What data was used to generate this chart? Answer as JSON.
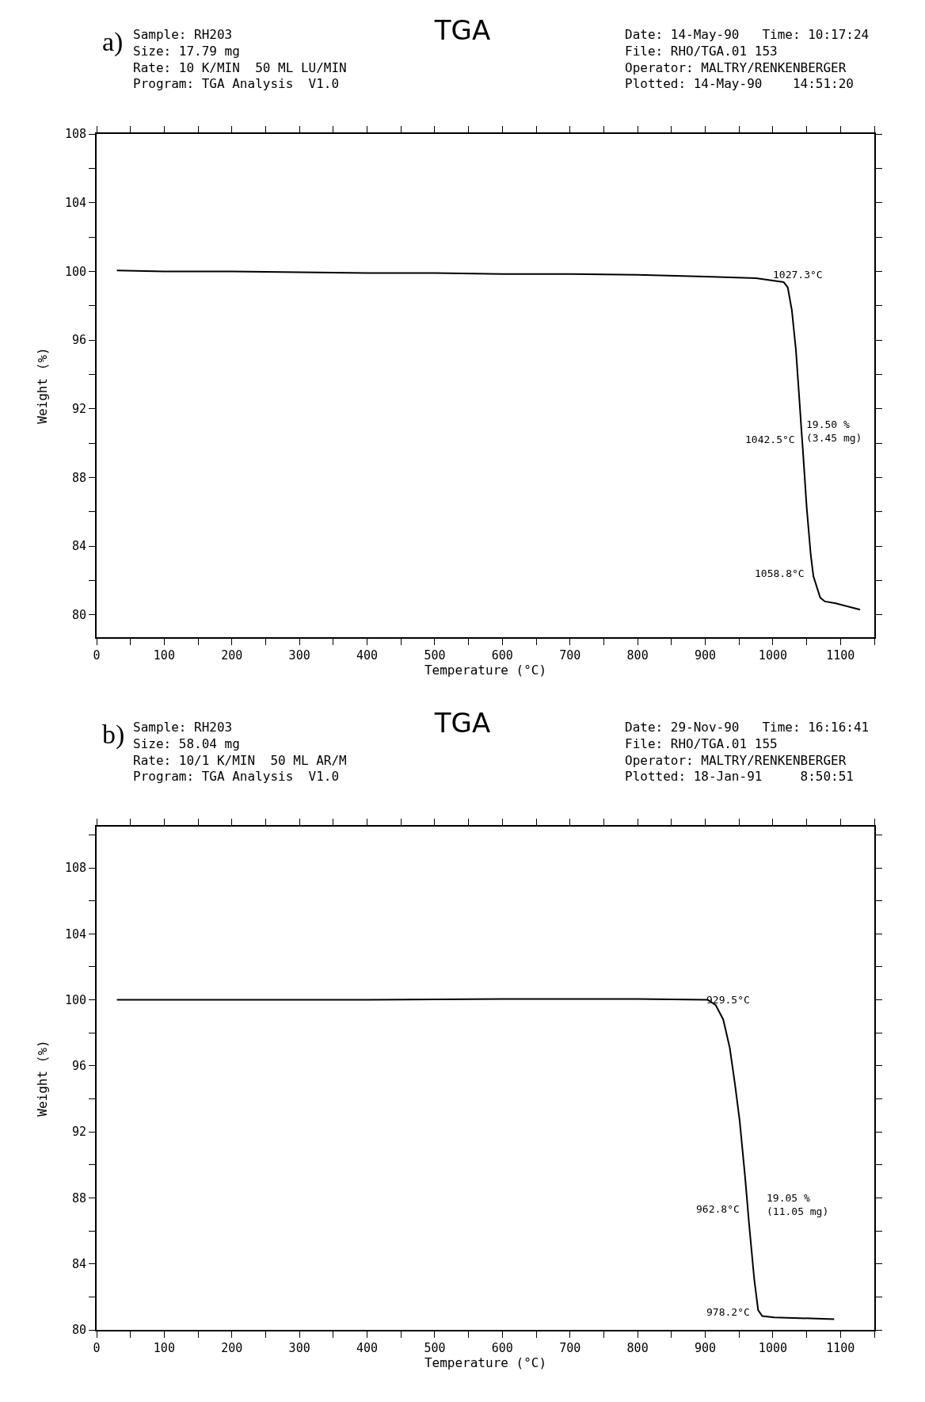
{
  "chart_data": [
    {
      "type": "line",
      "title": "TGA",
      "xlabel": "Temperature (°C)",
      "ylabel": "Weight (%)",
      "annotations": [
        "a)",
        "Sample: RH203\nSize: 17.79 mg\nRate: 10 K/MIN  50 ML LU/MIN\nProgram: TGA Analysis  V1.0",
        "Date: 14-May-90   Time: 10:17:24\nFile: RHO/TGA.01 153\nOperator: MALTRY/RENKENBERGER\nPlotted: 14-May-90    14:51:20",
        {
          "text": "1027.3°C",
          "x": 1027.3,
          "y": 97.9
        },
        {
          "text": "1042.5°C",
          "x": 1042.5,
          "y": 90.6
        },
        {
          "text": "19.50 %\n(3.45 mg)",
          "x": 1042.5,
          "y": 90.6
        },
        {
          "text": "1058.8°C",
          "x": 1058.8,
          "y": 82.6
        }
      ],
      "series": [
        {
          "color": "#000000",
          "x": [
            30,
            100,
            200,
            300,
            400,
            500,
            600,
            700,
            800,
            900,
            975,
            1016,
            1022,
            1027.3,
            1028,
            1034,
            1040,
            1042.5,
            1044,
            1050,
            1056,
            1058.8,
            1060,
            1070,
            1077,
            1093,
            1129
          ],
          "values": [
            100.05,
            100.0,
            100.0,
            99.95,
            99.9,
            99.9,
            99.85,
            99.85,
            99.8,
            99.7,
            99.6,
            99.37,
            99.06,
            97.9,
            97.76,
            95.46,
            92.07,
            90.6,
            89.8,
            86.25,
            83.5,
            82.6,
            82.24,
            81.0,
            80.78,
            80.67,
            80.3
          ]
        }
      ],
      "xlim": [
        0,
        1150
      ],
      "xticks": [
        0,
        {
          "value": 50,
          "label": null
        },
        100,
        {
          "value": 150,
          "label": null
        },
        200,
        {
          "value": 250,
          "label": null
        },
        300,
        {
          "value": 350,
          "label": null
        },
        400,
        {
          "value": 450,
          "label": null
        },
        500,
        {
          "value": 550,
          "label": null
        },
        600,
        {
          "value": 650,
          "label": null
        },
        700,
        {
          "value": 750,
          "label": null
        },
        800,
        {
          "value": 850,
          "label": null
        },
        900,
        {
          "value": 950,
          "label": null
        },
        1000,
        {
          "value": 1050,
          "label": null
        },
        1100,
        {
          "value": 1150,
          "label": null
        }
      ],
      "ylim": [
        78.7,
        108
      ],
      "yticks": [
        80,
        {
          "value": 82,
          "label": null
        },
        84,
        {
          "value": 86,
          "label": null
        },
        88,
        {
          "value": 90,
          "label": null
        },
        92,
        {
          "value": 94,
          "label": null
        },
        96,
        {
          "value": 98,
          "label": null
        },
        100,
        {
          "value": 102,
          "label": null
        },
        104,
        {
          "value": 106,
          "label": null
        },
        108
      ],
      "marker": "none",
      "line_style": "solid"
    },
    {
      "type": "line",
      "title": "TGA",
      "xlabel": "Temperature (°C)",
      "ylabel": "Weight (%)",
      "annotations": [
        "b)",
        "Sample: RH203\nSize: 58.04 mg\nRate: 10/1 K/MIN  50 ML AR/M\nProgram: TGA Analysis  V1.0",
        "Date: 29-Nov-90   Time: 16:16:41\nFile: RHO/TGA.01 155\nOperator: MALTRY/RENKENBERGER\nPlotted: 18-Jan-91     8:50:51",
        {
          "text": "929.5°C",
          "x": 929.5,
          "y": 98.3
        },
        {
          "text": "962.8°C",
          "x": 962.8,
          "y": 87.4
        },
        {
          "text": "19.05 %\n(11.05 mg)",
          "x": 962.8,
          "y": 87.4
        },
        {
          "text": "978.2°C",
          "x": 978.2,
          "y": 81.2
        }
      ],
      "series": [
        {
          "color": "#000000",
          "x": [
            30,
            200,
            400,
            600,
            800,
            903.6,
            915.5,
            926.5,
            929.5,
            936.3,
            944,
            950.9,
            958.7,
            962.8,
            964.6,
            972.5,
            978.2,
            984.3,
            1002,
            1090.6
          ],
          "values": [
            100.0,
            100.0,
            100.0,
            100.05,
            100.05,
            100.0,
            99.68,
            98.82,
            98.3,
            97.08,
            94.87,
            92.67,
            89.36,
            87.4,
            86.52,
            83.05,
            81.2,
            80.84,
            80.76,
            80.65
          ]
        }
      ],
      "xlim": [
        0,
        1150
      ],
      "xticks": [
        0,
        {
          "value": 50,
          "label": null
        },
        100,
        {
          "value": 150,
          "label": null
        },
        200,
        {
          "value": 250,
          "label": null
        },
        300,
        {
          "value": 350,
          "label": null
        },
        400,
        {
          "value": 450,
          "label": null
        },
        500,
        {
          "value": 550,
          "label": null
        },
        600,
        {
          "value": 650,
          "label": null
        },
        700,
        {
          "value": 750,
          "label": null
        },
        800,
        {
          "value": 850,
          "label": null
        },
        900,
        {
          "value": 950,
          "label": null
        },
        1000,
        {
          "value": 1050,
          "label": null
        },
        1100,
        {
          "value": 1150,
          "label": null
        }
      ],
      "ylim": [
        80,
        110.5
      ],
      "yticks": [
        80,
        {
          "value": 82,
          "label": null
        },
        84,
        {
          "value": 86,
          "label": null
        },
        88,
        {
          "value": 90,
          "label": null
        },
        92,
        {
          "value": 94,
          "label": null
        },
        96,
        {
          "value": 98,
          "label": null
        },
        100,
        {
          "value": 102,
          "label": null
        },
        104,
        {
          "value": 106,
          "label": null
        },
        108,
        {
          "value": 110,
          "label": null
        }
      ],
      "marker": "none",
      "line_style": "solid"
    }
  ]
}
